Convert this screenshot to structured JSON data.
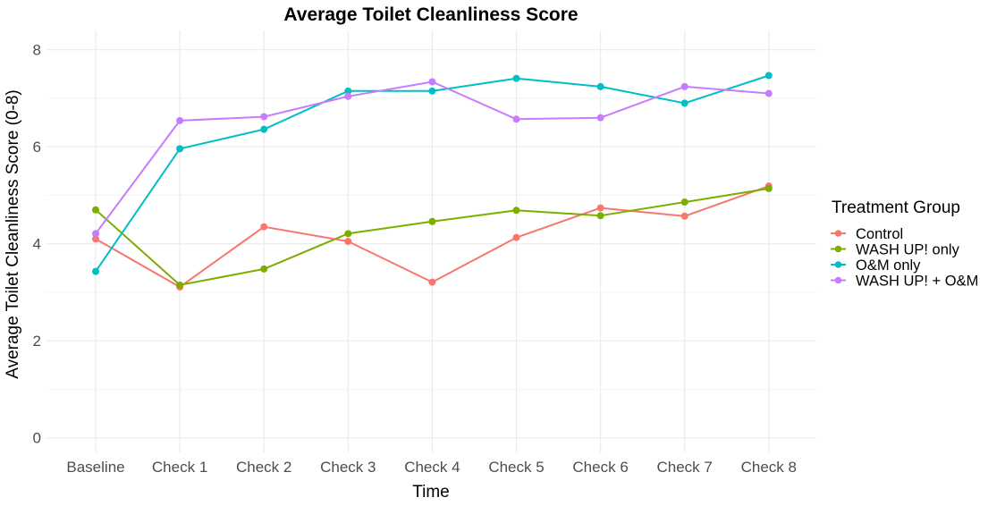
{
  "chart_data": {
    "type": "line",
    "title": "Average Toilet Cleanliness Score",
    "xlabel": "Time",
    "ylabel": "Average Toilet Cleanliness Score (0-8)",
    "categories": [
      "Baseline",
      "Check 1",
      "Check 2",
      "Check 3",
      "Check 4",
      "Check 5",
      "Check 6",
      "Check 7",
      "Check 8"
    ],
    "ylim": [
      -0.3,
      8.4
    ],
    "yticks": [
      0,
      2,
      4,
      6,
      8
    ],
    "grid": true,
    "legend_title": "Treatment Group",
    "legend_position": "right",
    "series": [
      {
        "name": "Control",
        "color": "#F8766D",
        "values": [
          4.1,
          3.11,
          4.35,
          4.05,
          3.21,
          4.13,
          4.74,
          4.57,
          5.19
        ]
      },
      {
        "name": "WASH UP! only",
        "color": "#7CAE00",
        "values": [
          4.7,
          3.15,
          3.48,
          4.21,
          4.46,
          4.69,
          4.58,
          4.86,
          5.14
        ]
      },
      {
        "name": "O&M only",
        "color": "#00BFC4",
        "values": [
          3.43,
          5.96,
          6.36,
          7.15,
          7.15,
          7.41,
          7.24,
          6.9,
          7.47
        ]
      },
      {
        "name": "WASH UP! + O&M",
        "color": "#C77CFF",
        "values": [
          4.21,
          6.54,
          6.62,
          7.04,
          7.34,
          6.57,
          6.6,
          7.24,
          7.1
        ]
      }
    ]
  }
}
